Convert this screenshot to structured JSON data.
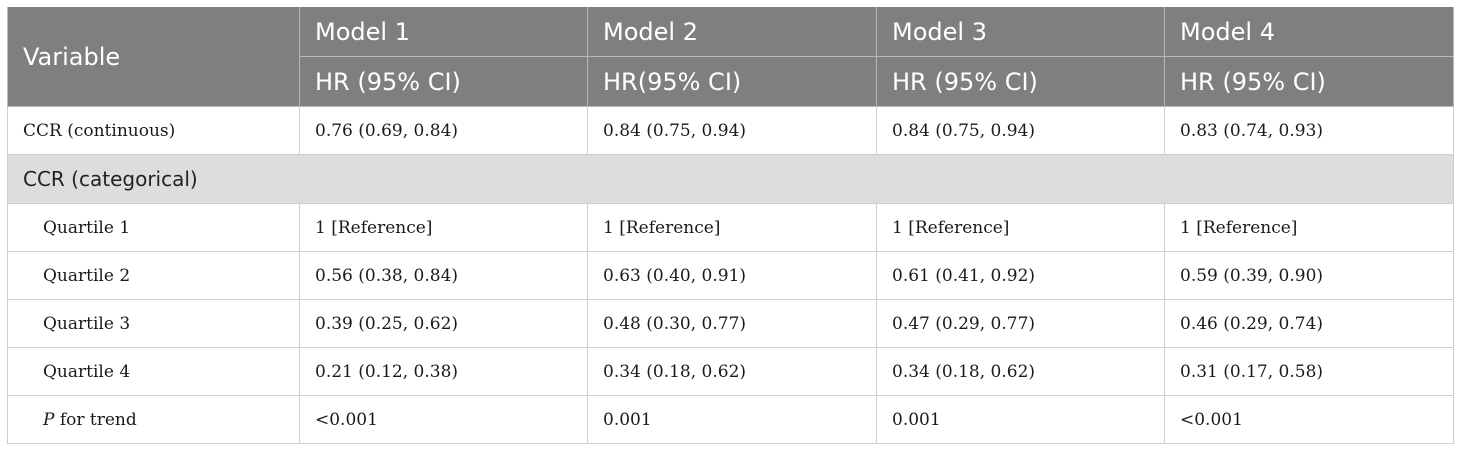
{
  "header": {
    "variable": "Variable",
    "models": [
      "Model 1",
      "Model 2",
      "Model 3",
      "Model 4"
    ],
    "subheaders": [
      "HR (95% CI)",
      "HR(95% CI)",
      "HR (95% CI)",
      "HR (95% CI)"
    ]
  },
  "rows": {
    "continuous": {
      "label": "CCR (continuous)",
      "values": [
        "0.76 (0.69, 0.84)",
        "0.84 (0.75, 0.94)",
        "0.84 (0.75, 0.94)",
        "0.83 (0.74, 0.93)"
      ]
    },
    "section_label": "CCR (categorical)",
    "quartiles": [
      {
        "label": "Quartile 1",
        "values": [
          "1 [Reference]",
          "1 [Reference]",
          "1 [Reference]",
          "1 [Reference]"
        ]
      },
      {
        "label": "Quartile 2",
        "values": [
          "0.56 (0.38, 0.84)",
          "0.63 (0.40, 0.91)",
          "0.61 (0.41, 0.92)",
          "0.59 (0.39, 0.90)"
        ]
      },
      {
        "label": "Quartile 3",
        "values": [
          "0.39 (0.25, 0.62)",
          "0.48 (0.30, 0.77)",
          "0.47 (0.29, 0.77)",
          "0.46 (0.29, 0.74)"
        ]
      },
      {
        "label": "Quartile 4",
        "values": [
          "0.21 (0.12, 0.38)",
          "0.34 (0.18, 0.62)",
          "0.34 (0.18, 0.62)",
          "0.31 (0.17, 0.58)"
        ]
      }
    ],
    "trend": {
      "label_italic": "P",
      "label_rest": " for trend",
      "values": [
        "<0.001",
        "0.001",
        "0.001",
        "<0.001"
      ]
    }
  }
}
